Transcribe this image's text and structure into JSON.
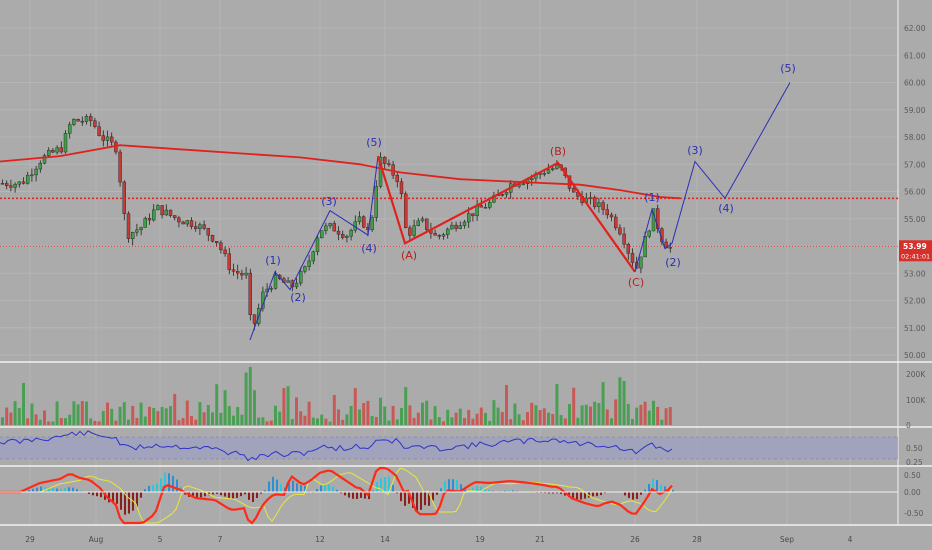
{
  "chart_data": {
    "type": "candlestick",
    "price_axis": {
      "ticks": [
        "62.00",
        "61.00",
        "60.00",
        "59.00",
        "58.00",
        "57.00",
        "56.00",
        "55.00",
        "54.00",
        "53.00",
        "52.00",
        "51.00",
        "50.00"
      ],
      "range": [
        49.8,
        62.6
      ]
    },
    "current_price": {
      "label": "53.99",
      "countdown": "02:41:01",
      "level": 53.99
    },
    "volume_axis": {
      "ticks": [
        "200K",
        "100K",
        "0"
      ]
    },
    "rsi_axis": {
      "ticks": [
        "0.50",
        "0.25"
      ]
    },
    "macd_axis": {
      "ticks": [
        "0.50",
        "0.00",
        "-0.50"
      ]
    },
    "x_ticks": [
      "29",
      "Aug",
      "5",
      "7",
      "12",
      "14",
      "19",
      "21",
      "26",
      "28",
      "Sep",
      "4"
    ],
    "resistance_level": 55.75,
    "wave_labels_blue": [
      "(1)",
      "(2)",
      "(3)",
      "(4)",
      "(5)",
      "(1)",
      "(2)",
      "(3)",
      "(4)",
      "(5)"
    ],
    "wave_labels_red": [
      "(A)",
      "(B)",
      "(C)"
    ],
    "ma_line": [
      [
        0,
        57.1
      ],
      [
        60,
        57.3
      ],
      [
        120,
        57.7
      ],
      [
        180,
        57.55
      ],
      [
        240,
        57.4
      ],
      [
        300,
        57.25
      ],
      [
        360,
        57.0
      ],
      [
        400,
        56.7
      ],
      [
        460,
        56.45
      ],
      [
        520,
        56.35
      ],
      [
        580,
        56.25
      ],
      [
        620,
        56.05
      ],
      [
        660,
        55.8
      ],
      [
        680,
        55.75
      ]
    ],
    "impulse_1": [
      [
        250,
        50.55
      ],
      [
        275,
        53.05
      ],
      [
        290,
        52.4
      ],
      [
        330,
        55.3
      ],
      [
        368,
        54.4
      ],
      [
        378,
        57.3
      ]
    ],
    "abc": [
      [
        378,
        57.3
      ],
      [
        405,
        54.1
      ],
      [
        558,
        57.05
      ],
      [
        635,
        53.05
      ]
    ],
    "projection": [
      [
        635,
        53.05
      ],
      [
        652,
        55.35
      ],
      [
        665,
        53.9
      ],
      [
        672,
        54.1
      ],
      [
        695,
        57.1
      ],
      [
        725,
        55.75
      ],
      [
        790,
        60.0
      ]
    ]
  },
  "colors": {
    "background": "#ababab",
    "up": "#3f9e48",
    "down": "#c83a36",
    "wick": "#222222",
    "ma": "#e0211c",
    "wave": "#2a2fb8",
    "level": "#e0211c",
    "rsi": "#2d34c8",
    "rsi_band": "#9d9fc0",
    "macd_fast": "#ff2a16",
    "macd_slow": "#e8e83a",
    "macd_cross": "#34e040"
  }
}
